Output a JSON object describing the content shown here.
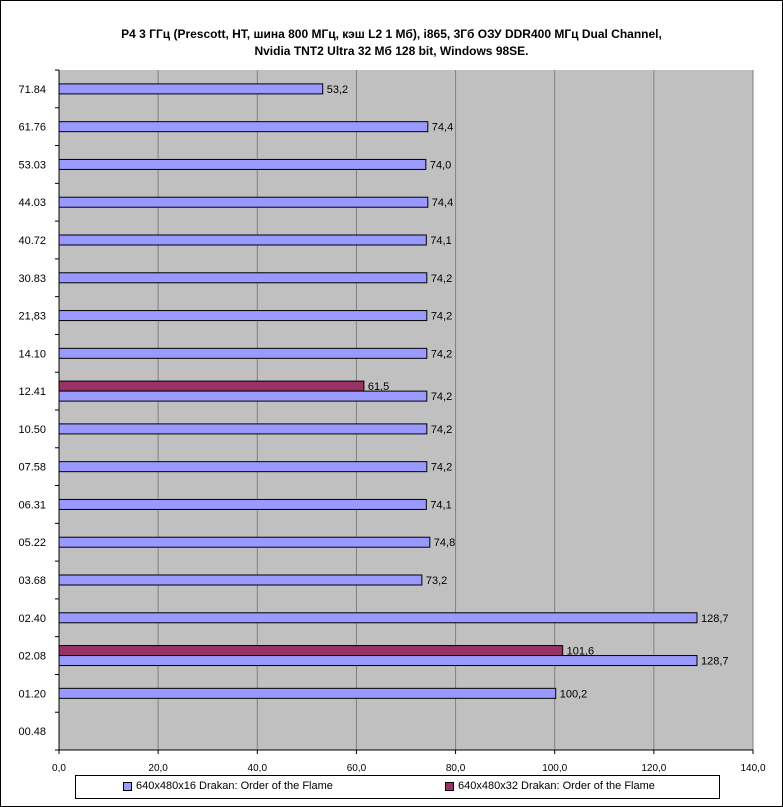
{
  "title": {
    "line1": "P4 3 ГГц (Prescott, HT, шина 800 МГц, кэш L2 1 Мб), i865, 3Гб ОЗУ DDR400 МГц Dual Channel,",
    "line2": "Nvidia TNT2 Ultra 32 Мб 128 bit, Windows 98SE."
  },
  "colors": {
    "plot_background": "#c0c0c0",
    "gridline": "#808080",
    "series1": "#9999ff",
    "series2": "#993366"
  },
  "chart_data": {
    "type": "bar",
    "orientation": "horizontal",
    "categories": [
      "71.84",
      "61.76",
      "53.03",
      "44.03",
      "40.72",
      "30.83",
      "21,83",
      "14.10",
      "12.41",
      "10.50",
      "07.58",
      "06.31",
      "05.22",
      "03.68",
      "02.40",
      "02.08",
      "01.20",
      "00.48"
    ],
    "series": [
      {
        "name": "640x480x16 Drakan: Order of the Flame",
        "values": [
          53.2,
          74.4,
          74.0,
          74.4,
          74.1,
          74.2,
          74.2,
          74.2,
          74.2,
          74.2,
          74.2,
          74.1,
          74.8,
          73.2,
          128.7,
          128.7,
          100.2,
          null
        ]
      },
      {
        "name": "640x480x32 Drakan: Order of the Flame",
        "values": [
          null,
          null,
          null,
          null,
          null,
          null,
          null,
          null,
          61.5,
          null,
          null,
          null,
          null,
          null,
          null,
          101.6,
          null,
          null
        ]
      }
    ],
    "data_labels_1": [
      "53,2",
      "74,4",
      "74,0",
      "74,4",
      "74,1",
      "74,2",
      "74,2",
      "74,2",
      "74,2",
      "74,2",
      "74,2",
      "74,1",
      "74,8",
      "73,2",
      "128,7",
      "128,7",
      "100,2",
      ""
    ],
    "data_labels_2": [
      "",
      "",
      "",
      "",
      "",
      "",
      "",
      "",
      "61,5",
      "",
      "",
      "",
      "",
      "",
      "",
      "101,6",
      "",
      ""
    ],
    "xlim": [
      0,
      140
    ],
    "x_ticks": [
      0,
      20,
      40,
      60,
      80,
      100,
      120,
      140
    ],
    "x_tick_labels": [
      "0,0",
      "20,0",
      "40,0",
      "60,0",
      "80,0",
      "100,0",
      "120,0",
      "140,0"
    ],
    "grid": true,
    "legend_position": "bottom"
  }
}
